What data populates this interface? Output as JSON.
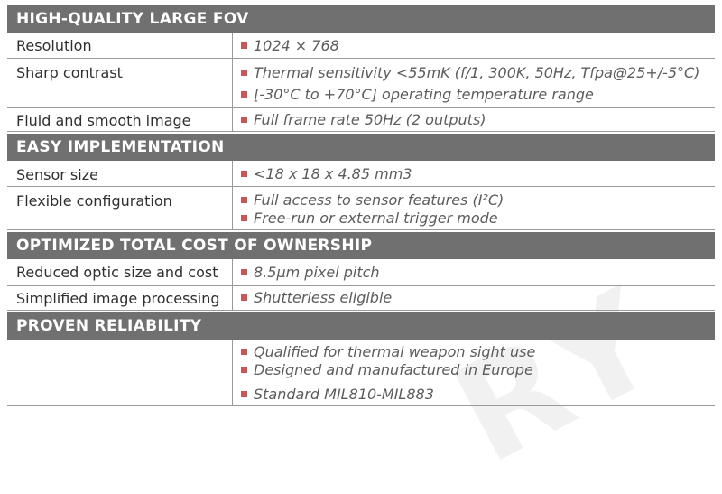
{
  "watermark": "RY",
  "sections": [
    {
      "title": "HIGH-QUALITY LARGE FOV",
      "rows": [
        {
          "label": "Resolution",
          "values": [
            "1024 × 768"
          ]
        },
        {
          "label": "Sharp contrast",
          "values": [
            "Thermal sensitivity <55mK (f/1, 300K, 50Hz, Tfpa@25+/-5°C)",
            "[-30°C to +70°C] operating temperature range"
          ]
        },
        {
          "label": "Fluid and smooth image",
          "values": [
            "Full frame rate 50Hz (2 outputs)"
          ]
        }
      ]
    },
    {
      "title": "EASY IMPLEMENTATION",
      "rows": [
        {
          "label": "Sensor size",
          "values": [
            "<18 x 18 x 4.85 mm3"
          ]
        },
        {
          "label": "Flexible configuration",
          "values": [
            "Full access to sensor features (I²C)",
            "Free-run or external trigger mode"
          ]
        }
      ]
    },
    {
      "title": "OPTIMIZED TOTAL COST OF OWNERSHIP",
      "rows": [
        {
          "label": "Reduced optic size and cost",
          "values": [
            "8.5µm pixel pitch"
          ]
        },
        {
          "label": "Simplified image processing",
          "values": [
            "Shutterless eligible"
          ]
        }
      ]
    },
    {
      "title": "PROVEN RELIABILITY",
      "rows": [
        {
          "label": "",
          "values": [
            "Qualified for thermal weapon sight use",
            "Designed and manufactured in Europe",
            "Standard MIL810-MIL883"
          ]
        }
      ]
    }
  ],
  "colors": {
    "header_bg": "#707070",
    "bullet": "#c9575a",
    "rule": "#9a9a9a"
  }
}
